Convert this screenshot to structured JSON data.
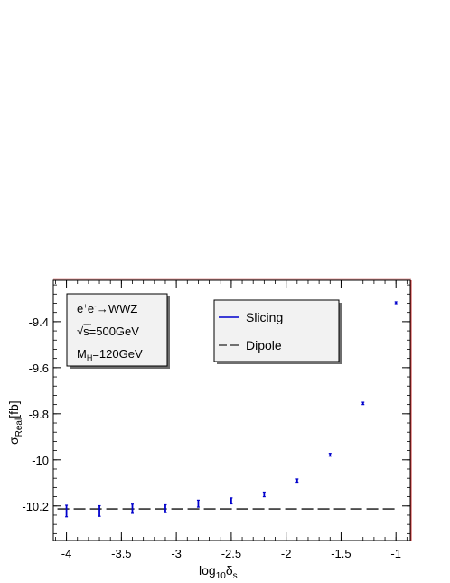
{
  "chart_data": {
    "type": "scatter",
    "xlabel": {
      "main": "log",
      "sub1": "10",
      "greek": "δ",
      "sub2": "s"
    },
    "ylabel": {
      "main": "σ",
      "sub": "Real",
      "unit": "[fb]"
    },
    "xlim": [
      -4.12,
      -0.87
    ],
    "ylim": [
      -10.35,
      -9.22
    ],
    "x_ticks": [
      -4,
      -3.5,
      -3,
      -2.5,
      -2,
      -1.5,
      -1
    ],
    "x_tick_labels": [
      "-4",
      "-3.5",
      "-3",
      "-2.5",
      "-2",
      "-1.5",
      "-1"
    ],
    "y_ticks": [
      -10.2,
      -10,
      -9.8,
      -9.6,
      -9.4
    ],
    "y_tick_labels": [
      "-10.2",
      "-10",
      "-9.8",
      "-9.6",
      "-9.4"
    ],
    "grid": false,
    "series": [
      {
        "name": "Slicing",
        "style": "errorbar",
        "color": "#0000cc",
        "points": [
          {
            "x": -4.0,
            "y": -10.222,
            "err": 0.025
          },
          {
            "x": -3.7,
            "y": -10.222,
            "err": 0.023
          },
          {
            "x": -3.4,
            "y": -10.212,
            "err": 0.02
          },
          {
            "x": -3.1,
            "y": -10.212,
            "err": 0.017
          },
          {
            "x": -2.8,
            "y": -10.19,
            "err": 0.015
          },
          {
            "x": -2.5,
            "y": -10.178,
            "err": 0.013
          },
          {
            "x": -2.2,
            "y": -10.15,
            "err": 0.01
          },
          {
            "x": -1.9,
            "y": -10.09,
            "err": 0.007
          },
          {
            "x": -1.6,
            "y": -9.978,
            "err": 0.006
          },
          {
            "x": -1.3,
            "y": -9.755,
            "err": 0.005
          },
          {
            "x": -1.0,
            "y": -9.318,
            "err": 0.004
          }
        ]
      },
      {
        "name": "Dipole",
        "style": "dashed-line",
        "color": "#000000",
        "x": [
          -4.0,
          -1.0
        ],
        "y": [
          -10.213,
          -10.213
        ]
      }
    ],
    "legend": {
      "placement": "top-center",
      "entries": [
        {
          "label": "Slicing",
          "color": "#0000cc",
          "dash": "solid"
        },
        {
          "label": "Dipole",
          "color": "#000000",
          "dash": "dashed"
        }
      ]
    },
    "annotation": {
      "placement": "top-left",
      "process": {
        "initial": "e",
        "sup1": "+",
        "mid": "e",
        "sup2": "-",
        "arrow": "→",
        "final": "WWZ"
      },
      "energy": {
        "root": "√",
        "var": "s",
        "value": "=500GeV"
      },
      "mass": {
        "main": "M",
        "sub": "H",
        "value": "=120GeV"
      }
    }
  }
}
